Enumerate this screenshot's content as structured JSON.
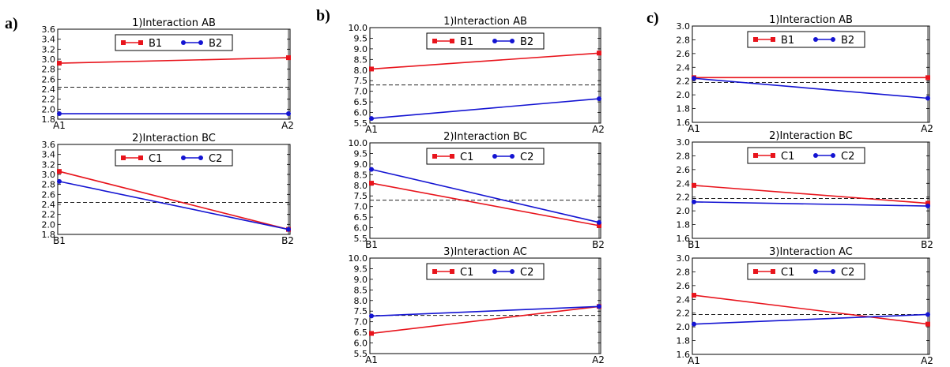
{
  "panel_letters": [
    "a)",
    "b)",
    "c)"
  ],
  "colors": {
    "series1": "#e8141c",
    "series2": "#1414d2",
    "mean": "#222222",
    "axis": "#000000",
    "frame": "#000000"
  },
  "chart_data": [
    {
      "id": "a1",
      "group": 0,
      "type": "line",
      "title": "1)Interaction AB",
      "categories": [
        "A1",
        "A2"
      ],
      "ylim": [
        1.8,
        3.6
      ],
      "yticks": [
        "1.8",
        "2.0",
        "2.2",
        "2.4",
        "2.6",
        "2.8",
        "3.0",
        "3.2",
        "3.4",
        "3.6"
      ],
      "series": [
        {
          "name": "B1",
          "values": [
            2.92,
            3.03
          ]
        },
        {
          "name": "B2",
          "values": [
            1.91,
            1.91
          ]
        }
      ],
      "mean": 2.44,
      "legend_location": "upper center",
      "grid": false
    },
    {
      "id": "a2",
      "group": 0,
      "type": "line",
      "title": "2)Interaction BC",
      "categories": [
        "B1",
        "B2"
      ],
      "ylim": [
        1.8,
        3.6
      ],
      "yticks": [
        "1.8",
        "2.0",
        "2.2",
        "2.4",
        "2.6",
        "2.8",
        "3.0",
        "3.2",
        "3.4",
        "3.6"
      ],
      "series": [
        {
          "name": "C1",
          "values": [
            3.06,
            1.9
          ]
        },
        {
          "name": "C2",
          "values": [
            2.86,
            1.9
          ]
        }
      ],
      "mean": 2.44,
      "legend_location": "upper center",
      "grid": false
    },
    {
      "id": "b1",
      "group": 1,
      "type": "line",
      "title": "1)Interaction AB",
      "categories": [
        "A1",
        "A2"
      ],
      "ylim": [
        5.5,
        10.0
      ],
      "yticks": [
        "5.5",
        "6.0",
        "6.5",
        "7.0",
        "7.5",
        "8.0",
        "8.5",
        "9.0",
        "9.5",
        "10.0"
      ],
      "series": [
        {
          "name": "B1",
          "values": [
            8.05,
            8.8
          ]
        },
        {
          "name": "B2",
          "values": [
            5.72,
            6.65
          ]
        }
      ],
      "mean": 7.3,
      "legend_location": "upper center",
      "grid": false
    },
    {
      "id": "b2",
      "group": 1,
      "type": "line",
      "title": "2)Interaction BC",
      "categories": [
        "B1",
        "B2"
      ],
      "ylim": [
        5.5,
        10.0
      ],
      "yticks": [
        "5.5",
        "6.0",
        "6.5",
        "7.0",
        "7.5",
        "8.0",
        "8.5",
        "9.0",
        "9.5",
        "10.0"
      ],
      "series": [
        {
          "name": "C1",
          "values": [
            8.1,
            6.1
          ]
        },
        {
          "name": "C2",
          "values": [
            8.75,
            6.25
          ]
        }
      ],
      "mean": 7.3,
      "legend_location": "upper center",
      "grid": false
    },
    {
      "id": "b3",
      "group": 1,
      "type": "line",
      "title": "3)Interaction AC",
      "categories": [
        "A1",
        "A2"
      ],
      "ylim": [
        5.5,
        10.0
      ],
      "yticks": [
        "5.5",
        "6.0",
        "6.5",
        "7.0",
        "7.5",
        "8.0",
        "8.5",
        "9.0",
        "9.5",
        "10.0"
      ],
      "series": [
        {
          "name": "C1",
          "values": [
            6.45,
            7.72
          ]
        },
        {
          "name": "C2",
          "values": [
            7.27,
            7.72
          ]
        }
      ],
      "mean": 7.3,
      "legend_location": "upper center",
      "grid": false
    },
    {
      "id": "c1",
      "group": 2,
      "type": "line",
      "title": "1)Interaction AB",
      "categories": [
        "A1",
        "A2"
      ],
      "ylim": [
        1.6,
        3.0
      ],
      "yticks": [
        "1.6",
        "1.8",
        "2.0",
        "2.2",
        "2.4",
        "2.6",
        "2.8",
        "3.0"
      ],
      "series": [
        {
          "name": "B1",
          "values": [
            2.25,
            2.25
          ]
        },
        {
          "name": "B2",
          "values": [
            2.24,
            1.95
          ]
        }
      ],
      "mean": 2.18,
      "legend_location": "upper center",
      "grid": false
    },
    {
      "id": "c2",
      "group": 2,
      "type": "line",
      "title": "2)Interaction BC",
      "categories": [
        "B1",
        "B2"
      ],
      "ylim": [
        1.6,
        3.0
      ],
      "yticks": [
        "1.6",
        "1.8",
        "2.0",
        "2.2",
        "2.4",
        "2.6",
        "2.8",
        "3.0"
      ],
      "series": [
        {
          "name": "C1",
          "values": [
            2.37,
            2.11
          ]
        },
        {
          "name": "C2",
          "values": [
            2.13,
            2.07
          ]
        }
      ],
      "mean": 2.18,
      "legend_location": "upper center",
      "grid": false
    },
    {
      "id": "c3",
      "group": 2,
      "type": "line",
      "title": "3)Interaction AC",
      "categories": [
        "A1",
        "A2"
      ],
      "ylim": [
        1.6,
        3.0
      ],
      "yticks": [
        "1.6",
        "1.8",
        "2.0",
        "2.2",
        "2.4",
        "2.6",
        "2.8",
        "3.0"
      ],
      "series": [
        {
          "name": "C1",
          "values": [
            2.46,
            2.04
          ]
        },
        {
          "name": "C2",
          "values": [
            2.04,
            2.18
          ]
        }
      ],
      "mean": 2.18,
      "legend_location": "upper center",
      "grid": false
    }
  ]
}
